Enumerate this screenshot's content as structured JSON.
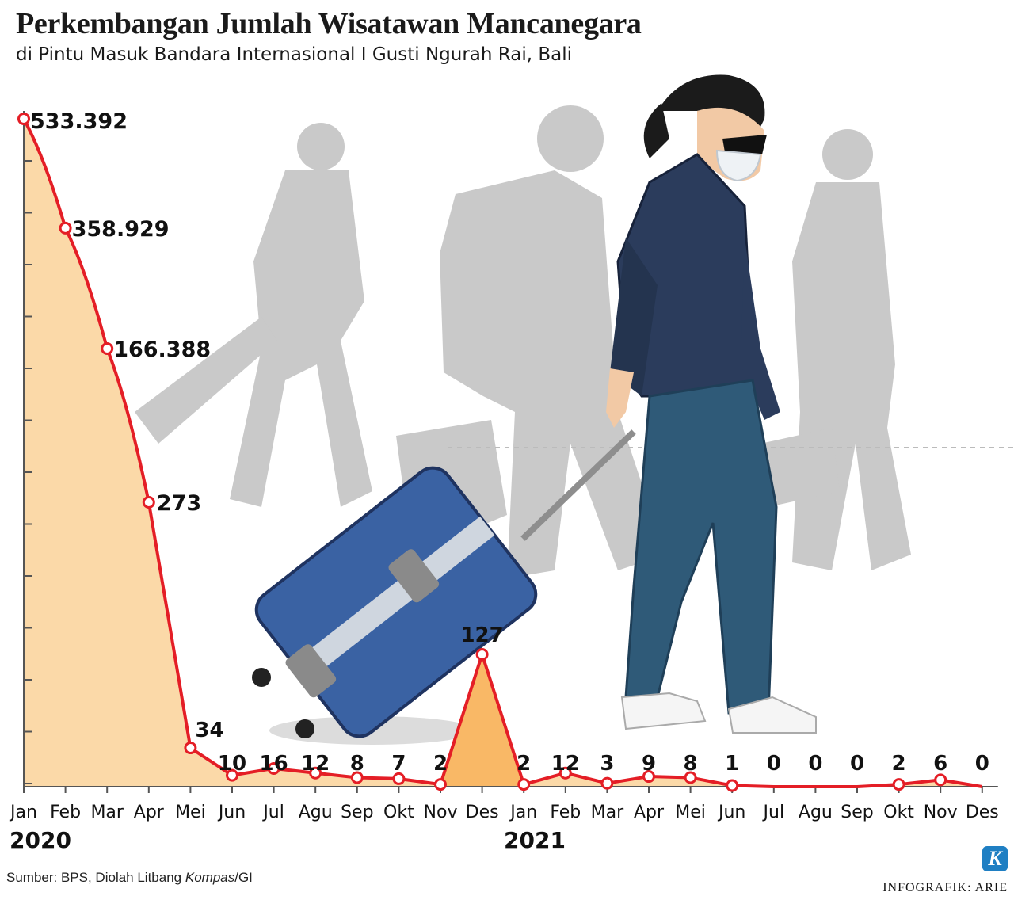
{
  "title": "Perkembangan Jumlah Wisatawan Mancanegara",
  "subtitle": "di Pintu Masuk Bandara Internasional I Gusti Ngurah Rai, Bali",
  "years": [
    "2020",
    "2021"
  ],
  "source_prefix": "Sumber: BPS, Diolah Litbang ",
  "source_italic": "Kompas",
  "source_suffix": "/GI",
  "credit": "INFOGRAFIK: ARIE",
  "logo_letter": "K",
  "colors": {
    "line": "#e41e26",
    "area_2020": "#fbd9a8",
    "area_dec": "#f9b866",
    "axis": "#555555",
    "silhouette": "#c9c9c9",
    "jacket": "#2b3c5c",
    "jeans": "#2f5a78",
    "suitcase": "#3a62a3"
  },
  "chart_data": {
    "type": "line",
    "scale": "nonlinear (values spaced as ranks, not to scale)",
    "categories": [
      "Jan",
      "Feb",
      "Mar",
      "Apr",
      "Mei",
      "Jun",
      "Jul",
      "Agu",
      "Sep",
      "Okt",
      "Nov",
      "Des",
      "Jan",
      "Feb",
      "Mar",
      "Apr",
      "Mei",
      "Jun",
      "Jul",
      "Agu",
      "Sep",
      "Okt",
      "Nov",
      "Des"
    ],
    "years": [
      {
        "label": "2020",
        "months": [
          0,
          11
        ]
      },
      {
        "label": "2021",
        "months": [
          12,
          23
        ]
      }
    ],
    "values": [
      533392,
      358929,
      166388,
      273,
      34,
      10,
      16,
      12,
      8,
      7,
      2,
      127,
      2,
      12,
      3,
      9,
      8,
      1,
      0,
      0,
      0,
      2,
      6,
      0
    ],
    "data_labels": [
      "533.392",
      "358.929",
      "166.388",
      "273",
      "34",
      "10",
      "16",
      "12",
      "8",
      "7",
      "2",
      "127",
      "2",
      "12",
      "3",
      "9",
      "8",
      "1",
      "0",
      "0",
      "0",
      "2",
      "6",
      "0"
    ],
    "markers_shown_months": 23,
    "grid": false
  }
}
